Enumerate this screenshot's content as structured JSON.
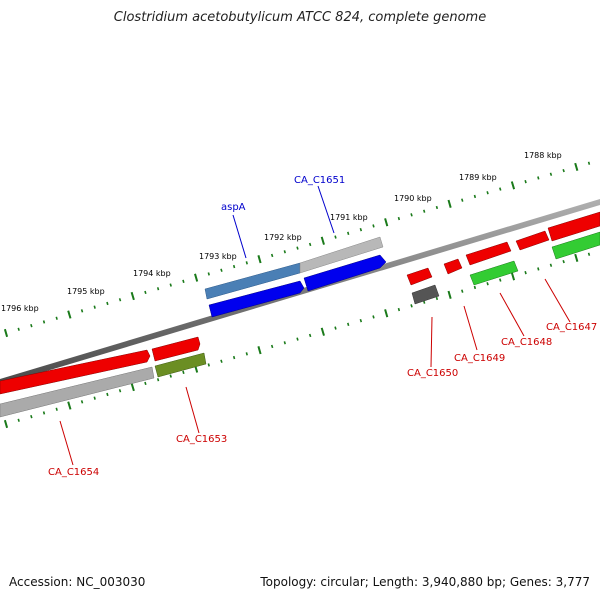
{
  "title": "Clostridium acetobutylicum ATCC 824, complete genome",
  "footer": {
    "accession": "Accession: NC_003030",
    "topology": "Topology: circular; Length: 3,940,880 bp; Genes: 3,777"
  },
  "tick_labels": [
    "1796 kbp",
    "1795 kbp",
    "1794 kbp",
    "1793 kbp",
    "1792 kbp",
    "1791 kbp",
    "1790 kbp",
    "1789 kbp",
    "1788 kbp"
  ],
  "genes": [
    {
      "label": "aspA",
      "color": "#0000cc"
    },
    {
      "label": "CA_C1651",
      "color": "#0000cc"
    },
    {
      "label": "CA_C1650",
      "color": "#cc0000"
    },
    {
      "label": "CA_C1649",
      "color": "#cc0000"
    },
    {
      "label": "CA_C1648",
      "color": "#cc0000"
    },
    {
      "label": "CA_C1647",
      "color": "#cc0000"
    },
    {
      "label": "CA_C1653",
      "color": "#cc0000"
    },
    {
      "label": "CA_C1654",
      "color": "#cc0000"
    }
  ],
  "colors": {
    "backbone": "#7a7a7a",
    "tick": "#1a7a1a",
    "forward_cds": "#0000ee",
    "forward_gene": "#4a7fb5",
    "reverse_cds": "#ee0000",
    "reverse_gene": "#33cc33",
    "pseudo": "#aaaaaa",
    "olive": "#6b8e23",
    "dark": "#555555"
  }
}
